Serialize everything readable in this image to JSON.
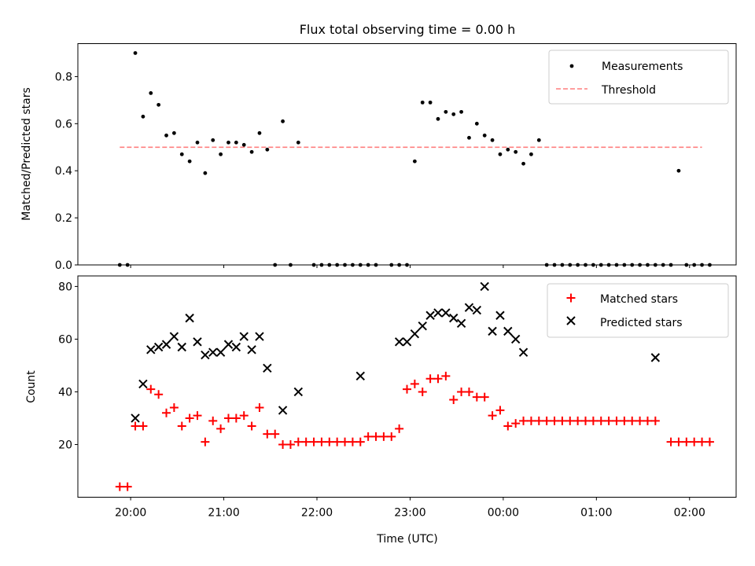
{
  "chart_data": [
    {
      "type": "scatter",
      "title": "Flux total observing time = 0.00 h",
      "ylabel": "Matched/Predicted stars",
      "xlabel": "",
      "ylim": [
        0,
        0.94
      ],
      "yticks": [
        0.0,
        0.2,
        0.4,
        0.6,
        0.8
      ],
      "ytick_labels": [
        "0.0",
        "0.2",
        "0.4",
        "0.6",
        "0.8"
      ],
      "grid": false,
      "legend_position": "upper right",
      "series": [
        {
          "name": "Measurements",
          "marker": "dot",
          "color": "#000000",
          "x": [
            "19:53",
            "19:58",
            "20:03",
            "20:08",
            "20:13",
            "20:18",
            "20:23",
            "20:28",
            "20:33",
            "20:38",
            "20:43",
            "20:48",
            "20:53",
            "20:58",
            "21:03",
            "21:08",
            "21:13",
            "21:18",
            "21:23",
            "21:28",
            "21:33",
            "21:38",
            "21:43",
            "21:48",
            "21:58",
            "22:03",
            "22:08",
            "22:13",
            "22:18",
            "22:23",
            "22:28",
            "22:33",
            "22:38",
            "22:48",
            "22:53",
            "22:58",
            "23:03",
            "23:08",
            "23:13",
            "23:18",
            "23:23",
            "23:28",
            "23:33",
            "23:38",
            "23:43",
            "23:48",
            "23:53",
            "23:58",
            "00:03",
            "00:08",
            "00:13",
            "00:18",
            "00:23",
            "00:28",
            "00:33",
            "00:38",
            "00:43",
            "00:48",
            "00:53",
            "00:58",
            "01:03",
            "01:08",
            "01:13",
            "01:18",
            "01:23",
            "01:28",
            "01:33",
            "01:38",
            "01:43",
            "01:48",
            "01:53",
            "01:58",
            "02:03",
            "02:08",
            "02:13"
          ],
          "y": [
            0.0,
            0.0,
            0.9,
            0.63,
            0.73,
            0.68,
            0.55,
            0.56,
            0.47,
            0.44,
            0.52,
            0.39,
            0.53,
            0.47,
            0.52,
            0.52,
            0.51,
            0.48,
            0.56,
            0.49,
            0.0,
            0.61,
            0.0,
            0.52,
            0.0,
            0.0,
            0.0,
            0.0,
            0.0,
            0.0,
            0.0,
            0.0,
            0.0,
            0.0,
            0.0,
            0.0,
            0.44,
            0.69,
            0.69,
            0.62,
            0.65,
            0.64,
            0.65,
            0.54,
            0.6,
            0.55,
            0.53,
            0.47,
            0.49,
            0.48,
            0.43,
            0.47,
            0.53,
            0.0,
            0.0,
            0.0,
            0.0,
            0.0,
            0.0,
            0.0,
            0.0,
            0.0,
            0.0,
            0.0,
            0.0,
            0.0,
            0.0,
            0.0,
            0.0,
            0.0,
            0.4,
            0.0,
            0.0,
            0.0,
            0.0
          ]
        },
        {
          "name": "Threshold",
          "line": "dashed",
          "color": "#ff7f7f",
          "x": [
            "19:53",
            "02:08"
          ],
          "y": [
            0.5,
            0.5
          ]
        }
      ]
    },
    {
      "type": "scatter",
      "title": "",
      "xlabel": "Time (UTC)",
      "ylabel": "Count",
      "ylim": [
        0,
        84
      ],
      "yticks": [
        20,
        40,
        60,
        80
      ],
      "ytick_labels": [
        "20",
        "40",
        "60",
        "80"
      ],
      "xlim": [
        "19:26",
        "02:30"
      ],
      "xticks": [
        "20:00",
        "21:00",
        "22:00",
        "23:00",
        "00:00",
        "01:00",
        "02:00"
      ],
      "xtick_labels": [
        "20:00",
        "21:00",
        "22:00",
        "23:00",
        "00:00",
        "01:00",
        "02:00"
      ],
      "grid": false,
      "legend_position": "upper right",
      "series": [
        {
          "name": "Matched stars",
          "marker": "plus",
          "color": "#ff0000",
          "x": [
            "19:53",
            "19:58",
            "20:03",
            "20:08",
            "20:13",
            "20:18",
            "20:23",
            "20:28",
            "20:33",
            "20:38",
            "20:43",
            "20:48",
            "20:53",
            "20:58",
            "21:03",
            "21:08",
            "21:13",
            "21:18",
            "21:23",
            "21:28",
            "21:33",
            "21:38",
            "21:43",
            "21:48",
            "21:53",
            "21:58",
            "22:03",
            "22:08",
            "22:13",
            "22:18",
            "22:23",
            "22:28",
            "22:33",
            "22:38",
            "22:43",
            "22:48",
            "22:53",
            "22:58",
            "23:03",
            "23:08",
            "23:13",
            "23:18",
            "23:23",
            "23:28",
            "23:33",
            "23:38",
            "23:43",
            "23:48",
            "23:53",
            "23:58",
            "00:03",
            "00:08",
            "00:13",
            "00:18",
            "00:23",
            "00:28",
            "00:33",
            "00:38",
            "00:43",
            "00:48",
            "00:53",
            "00:58",
            "01:03",
            "01:08",
            "01:13",
            "01:18",
            "01:23",
            "01:28",
            "01:33",
            "01:38",
            "01:48",
            "01:53",
            "01:58",
            "02:03",
            "02:08",
            "02:13"
          ],
          "y": [
            4,
            4,
            27,
            27,
            41,
            39,
            32,
            34,
            27,
            30,
            31,
            21,
            29,
            26,
            30,
            30,
            31,
            27,
            34,
            24,
            24,
            20,
            20,
            21,
            21,
            21,
            21,
            21,
            21,
            21,
            21,
            21,
            23,
            23,
            23,
            23,
            26,
            41,
            43,
            40,
            45,
            45,
            46,
            37,
            40,
            40,
            38,
            38,
            31,
            33,
            27,
            28,
            29,
            29,
            29,
            29,
            29,
            29,
            29,
            29,
            29,
            29,
            29,
            29,
            29,
            29,
            29,
            29,
            29,
            29,
            21,
            21,
            21,
            21,
            21,
            21
          ]
        },
        {
          "name": "Predicted stars",
          "marker": "x",
          "color": "#000000",
          "x": [
            "20:03",
            "20:08",
            "20:13",
            "20:18",
            "20:23",
            "20:28",
            "20:33",
            "20:38",
            "20:43",
            "20:48",
            "20:53",
            "20:58",
            "21:03",
            "21:08",
            "21:13",
            "21:18",
            "21:23",
            "21:28",
            "21:38",
            "21:48",
            "22:28",
            "22:53",
            "22:58",
            "23:03",
            "23:08",
            "23:13",
            "23:18",
            "23:23",
            "23:28",
            "23:33",
            "23:38",
            "23:43",
            "23:48",
            "23:53",
            "23:58",
            "00:03",
            "00:08",
            "00:13",
            "01:38"
          ],
          "y": [
            30,
            43,
            56,
            57,
            58,
            61,
            57,
            68,
            59,
            54,
            55,
            55,
            58,
            57,
            61,
            56,
            61,
            49,
            33,
            40,
            46,
            59,
            59,
            62,
            65,
            69,
            70,
            70,
            68,
            66,
            72,
            71,
            80,
            63,
            69,
            63,
            60,
            55,
            53
          ]
        }
      ]
    }
  ]
}
